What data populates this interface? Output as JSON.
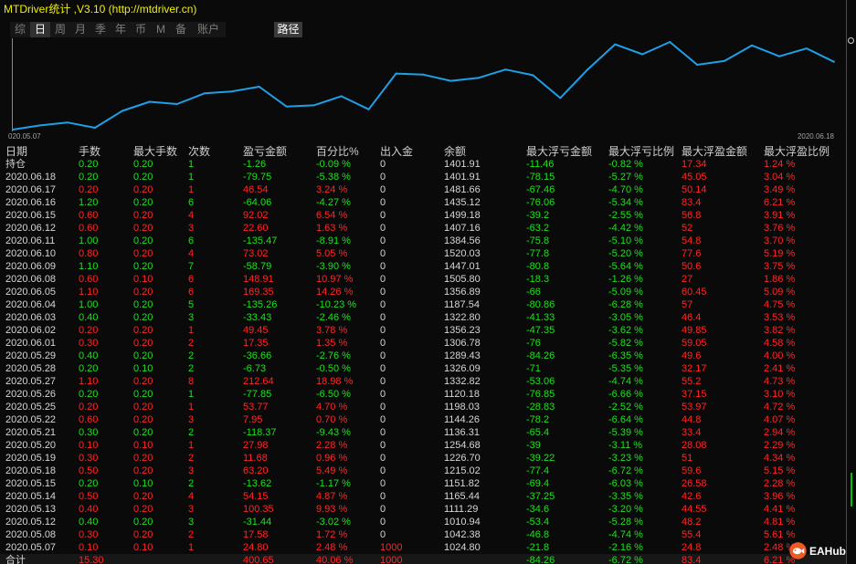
{
  "title": "MTDriver统计 ,V3.10 (http://mtdriver.cn)",
  "tabs": [
    {
      "label": "综"
    },
    {
      "label": "日",
      "selected": true
    },
    {
      "label": "周"
    },
    {
      "label": "月"
    },
    {
      "label": "季"
    },
    {
      "label": "年"
    },
    {
      "label": "币"
    },
    {
      "label": "M"
    },
    {
      "label": "备"
    },
    {
      "label": "账户"
    }
  ],
  "path_button": "路径",
  "colors": {
    "title": "#f0f000",
    "gain": "#ff2626",
    "loss": "#1fe01f",
    "text": "#d6d6d6",
    "line": "#1f9fe6",
    "axis": "#8a8a8a",
    "tick": "#a0a0a0"
  },
  "chart_data": {
    "type": "line",
    "x_tick_labels": [
      "020.05.07",
      "2020.06.18"
    ],
    "values": [
      1000,
      1024.8,
      1042.38,
      1010.94,
      1111.29,
      1165.44,
      1151.82,
      1215.02,
      1226.7,
      1254.68,
      1136.31,
      1144.26,
      1198.03,
      1120.18,
      1332.82,
      1326.09,
      1289.43,
      1306.78,
      1356.23,
      1322.8,
      1187.54,
      1356.89,
      1505.8,
      1447.01,
      1520.03,
      1384.56,
      1407.16,
      1499.18,
      1435.12,
      1481.66,
      1401.91
    ],
    "ylim": [
      1000,
      1520.03
    ],
    "grid": false,
    "legend": "none"
  },
  "table": {
    "headers": [
      "日期",
      "手数",
      "最大手数",
      "次数",
      "盈亏金额",
      "百分比%",
      "出入金",
      "余额",
      "最大浮亏金额",
      "最大浮亏比例",
      "最大浮盈金额",
      "最大浮盈比例"
    ],
    "rows": [
      [
        "持仓",
        "0.20",
        "0.20",
        "1",
        "-1.26",
        "-0.09 %",
        "0",
        "1401.91",
        "-11.46",
        "-0.82 %",
        "17.34",
        "1.24 %"
      ],
      [
        "2020.06.18",
        "0.20",
        "0.20",
        "1",
        "-79.75",
        "-5.38 %",
        "0",
        "1401.91",
        "-78.15",
        "-5.27 %",
        "45.05",
        "3.04 %"
      ],
      [
        "2020.06.17",
        "0.20",
        "0.20",
        "1",
        "46.54",
        "3.24 %",
        "0",
        "1481.66",
        "-67.46",
        "-4.70 %",
        "50.14",
        "3.49 %"
      ],
      [
        "2020.06.16",
        "1.20",
        "0.20",
        "6",
        "-64.06",
        "-4.27 %",
        "0",
        "1435.12",
        "-76.06",
        "-5.34 %",
        "83.4",
        "6.21 %"
      ],
      [
        "2020.06.15",
        "0.60",
        "0.20",
        "4",
        "92.02",
        "6.54 %",
        "0",
        "1499.18",
        "-39.2",
        "-2.55 %",
        "56.8",
        "3.91 %"
      ],
      [
        "2020.06.12",
        "0.60",
        "0.20",
        "3",
        "22.60",
        "1.63 %",
        "0",
        "1407.16",
        "-63.2",
        "-4.42 %",
        "52",
        "3.76 %"
      ],
      [
        "2020.06.11",
        "1.00",
        "0.20",
        "6",
        "-135.47",
        "-8.91 %",
        "0",
        "1384.56",
        "-75.8",
        "-5.10 %",
        "54.8",
        "3.70 %"
      ],
      [
        "2020.06.10",
        "0.80",
        "0.20",
        "4",
        "73.02",
        "5.05 %",
        "0",
        "1520.03",
        "-77.8",
        "-5.20 %",
        "77.6",
        "5.19 %"
      ],
      [
        "2020.06.09",
        "1.10",
        "0.20",
        "7",
        "-58.79",
        "-3.90 %",
        "0",
        "1447.01",
        "-80.8",
        "-5.64 %",
        "50.6",
        "3.75 %"
      ],
      [
        "2020.06.08",
        "0.60",
        "0.10",
        "6",
        "148.91",
        "10.97 %",
        "0",
        "1505.80",
        "-18.3",
        "-1.26 %",
        "27",
        "1.86 %"
      ],
      [
        "2020.06.05",
        "1.10",
        "0.20",
        "6",
        "169.35",
        "14.26 %",
        "0",
        "1356.89",
        "-66",
        "-5.09 %",
        "60.45",
        "5.09 %"
      ],
      [
        "2020.06.04",
        "1.00",
        "0.20",
        "5",
        "-135.26",
        "-10.23 %",
        "0",
        "1187.54",
        "-80.86",
        "-6.28 %",
        "57",
        "4.75 %"
      ],
      [
        "2020.06.03",
        "0.40",
        "0.20",
        "3",
        "-33.43",
        "-2.46 %",
        "0",
        "1322.80",
        "-41.33",
        "-3.05 %",
        "46.4",
        "3.53 %"
      ],
      [
        "2020.06.02",
        "0.20",
        "0.20",
        "1",
        "49.45",
        "3.78 %",
        "0",
        "1356.23",
        "-47.35",
        "-3.62 %",
        "49.85",
        "3.82 %"
      ],
      [
        "2020.06.01",
        "0.30",
        "0.20",
        "2",
        "17.35",
        "1.35 %",
        "0",
        "1306.78",
        "-76",
        "-5.82 %",
        "59.05",
        "4.58 %"
      ],
      [
        "2020.05.29",
        "0.40",
        "0.20",
        "2",
        "-36.66",
        "-2.76 %",
        "0",
        "1289.43",
        "-84.26",
        "-6.35 %",
        "49.6",
        "4.00 %"
      ],
      [
        "2020.05.28",
        "0.20",
        "0.10",
        "2",
        "-6.73",
        "-0.50 %",
        "0",
        "1326.09",
        "-71",
        "-5.35 %",
        "32.17",
        "2.41 %"
      ],
      [
        "2020.05.27",
        "1.10",
        "0.20",
        "8",
        "212.64",
        "18.98 %",
        "0",
        "1332.82",
        "-53.06",
        "-4.74 %",
        "55.2",
        "4.73 %"
      ],
      [
        "2020.05.26",
        "0.20",
        "0.20",
        "1",
        "-77.85",
        "-6.50 %",
        "0",
        "1120.18",
        "-76.85",
        "-6.66 %",
        "37.15",
        "3.10 %"
      ],
      [
        "2020.05.25",
        "0.20",
        "0.20",
        "1",
        "53.77",
        "4.70 %",
        "0",
        "1198.03",
        "-28.83",
        "-2.52 %",
        "53.97",
        "4.72 %"
      ],
      [
        "2020.05.22",
        "0.60",
        "0.20",
        "3",
        "7.95",
        "0.70 %",
        "0",
        "1144.26",
        "-78.2",
        "-6.64 %",
        "44.8",
        "4.07 %"
      ],
      [
        "2020.05.21",
        "0.30",
        "0.20",
        "2",
        "-118.37",
        "-9.43 %",
        "0",
        "1136.31",
        "-65.4",
        "-5.39 %",
        "33.4",
        "2.94 %"
      ],
      [
        "2020.05.20",
        "0.10",
        "0.10",
        "1",
        "27.98",
        "2.28 %",
        "0",
        "1254.68",
        "-39",
        "-3.11 %",
        "28.08",
        "2.29 %"
      ],
      [
        "2020.05.19",
        "0.30",
        "0.20",
        "2",
        "11.68",
        "0.96 %",
        "0",
        "1226.70",
        "-39.22",
        "-3.23 %",
        "51",
        "4.34 %"
      ],
      [
        "2020.05.18",
        "0.50",
        "0.20",
        "3",
        "63.20",
        "5.49 %",
        "0",
        "1215.02",
        "-77.4",
        "-6.72 %",
        "59.6",
        "5.15 %"
      ],
      [
        "2020.05.15",
        "0.20",
        "0.10",
        "2",
        "-13.62",
        "-1.17 %",
        "0",
        "1151.82",
        "-69.4",
        "-6.03 %",
        "26.58",
        "2.28 %"
      ],
      [
        "2020.05.14",
        "0.50",
        "0.20",
        "4",
        "54.15",
        "4.87 %",
        "0",
        "1165.44",
        "-37.25",
        "-3.35 %",
        "42.6",
        "3.96 %"
      ],
      [
        "2020.05.13",
        "0.40",
        "0.20",
        "3",
        "100.35",
        "9.93 %",
        "0",
        "1111.29",
        "-34.6",
        "-3.20 %",
        "44.55",
        "4.41 %"
      ],
      [
        "2020.05.12",
        "0.40",
        "0.20",
        "3",
        "-31.44",
        "-3.02 %",
        "0",
        "1010.94",
        "-53.4",
        "-5.28 %",
        "48.2",
        "4.81 %"
      ],
      [
        "2020.05.08",
        "0.30",
        "0.20",
        "2",
        "17.58",
        "1.72 %",
        "0",
        "1042.38",
        "-46.8",
        "-4.74 %",
        "55.4",
        "5.61 %"
      ],
      [
        "2020.05.07",
        "0.10",
        "0.10",
        "1",
        "24.80",
        "2.48 %",
        "1000",
        "1024.80",
        "-21.8",
        "-2.16 %",
        "24.8",
        "2.48 %"
      ]
    ],
    "total": [
      "合计",
      "15.30",
      "",
      "",
      "400.65",
      "40.06 %",
      "1000",
      "",
      "-84.26",
      "-6.72 %",
      "83.4",
      "6.21 %"
    ]
  },
  "watermark": {
    "label": "EAHub"
  }
}
